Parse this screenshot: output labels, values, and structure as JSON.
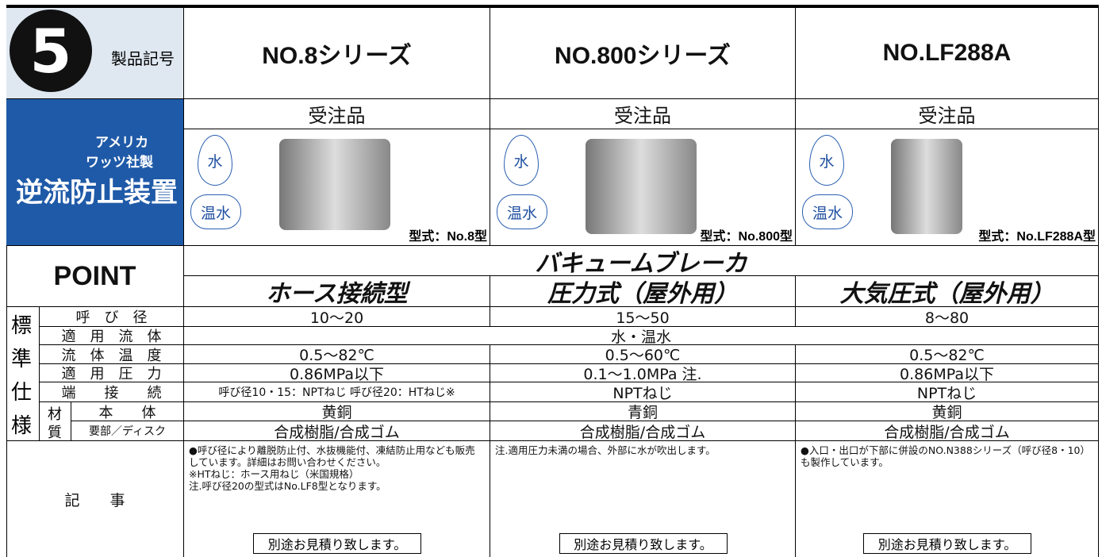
{
  "header": {
    "number": "5",
    "label": "製品記号",
    "maker_line1": "アメリカ",
    "maker_line2": "ワッツ社製",
    "product_kind": "逆流防止装置"
  },
  "products": [
    {
      "name": "NO.8シリーズ",
      "order": "受注品",
      "badges": [
        "水",
        "温水"
      ],
      "model": "型式：No.8型"
    },
    {
      "name": "NO.800シリーズ",
      "order": "受注品",
      "badges": [
        "水",
        "温水"
      ],
      "model": "型式：No.800型"
    },
    {
      "name": "NO.LF288A",
      "order": "受注品",
      "badges": [
        "水",
        "温水"
      ],
      "model": "型式：No.LF288A型"
    }
  ],
  "point": "POINT",
  "category": "バキュームブレーカ",
  "types": [
    "ホース接続型",
    "圧力式（屋外用）",
    "大気圧式（屋外用）"
  ],
  "spec": {
    "group": [
      "標",
      "準",
      "仕",
      "様"
    ],
    "rows": [
      {
        "label": "呼　び　径",
        "values": [
          "10～20",
          "15～50",
          "8～80"
        ]
      },
      {
        "label": "適　用　流　体",
        "values": [
          "水・温水"
        ]
      },
      {
        "label": "流　体　温　度",
        "values": [
          "0.5～82℃",
          "0.5～60℃",
          "0.5～82℃"
        ]
      },
      {
        "label": "適　用　圧　力",
        "values": [
          "0.86MPa以下",
          "0.1～1.0MPa 注.",
          "0.86MPa以下"
        ]
      },
      {
        "label": "端　　接　　続",
        "values": [
          "呼び径10・15：NPTねじ 呼び径20：HTねじ※",
          "NPTねじ",
          "NPTねじ"
        ]
      }
    ],
    "material": {
      "label": [
        "材",
        "質"
      ],
      "rows": [
        {
          "label": "本　　体",
          "values": [
            "黄銅",
            "青銅",
            "黄銅"
          ]
        },
        {
          "label": "要部／ディスク",
          "values": [
            "合成樹脂/合成ゴム",
            "合成樹脂/合成ゴム",
            "合成樹脂/合成ゴム"
          ]
        }
      ]
    }
  },
  "notes": {
    "label": "記　　事",
    "cells": [
      {
        "lines": [
          "●呼び径により離脱防止付、水抜機能付、凍結防止用なども販売しています。詳細はお問い合わせください。",
          "※HTねじ：ホース用ねじ（米国規格）",
          "注.呼び径20の型式はNo.LF8型となります。"
        ],
        "estimate": "別途お見積り致します。"
      },
      {
        "lines": [
          "注.適用圧力未満の場合、外部に水が吹出します。"
        ],
        "estimate": "別途お見積り致します。"
      },
      {
        "lines": [
          "●入口・出口が下部に併設のNO.N388シリーズ（呼び径8・10）も製作しています。"
        ],
        "estimate": "別途お見積り致します。"
      }
    ]
  }
}
